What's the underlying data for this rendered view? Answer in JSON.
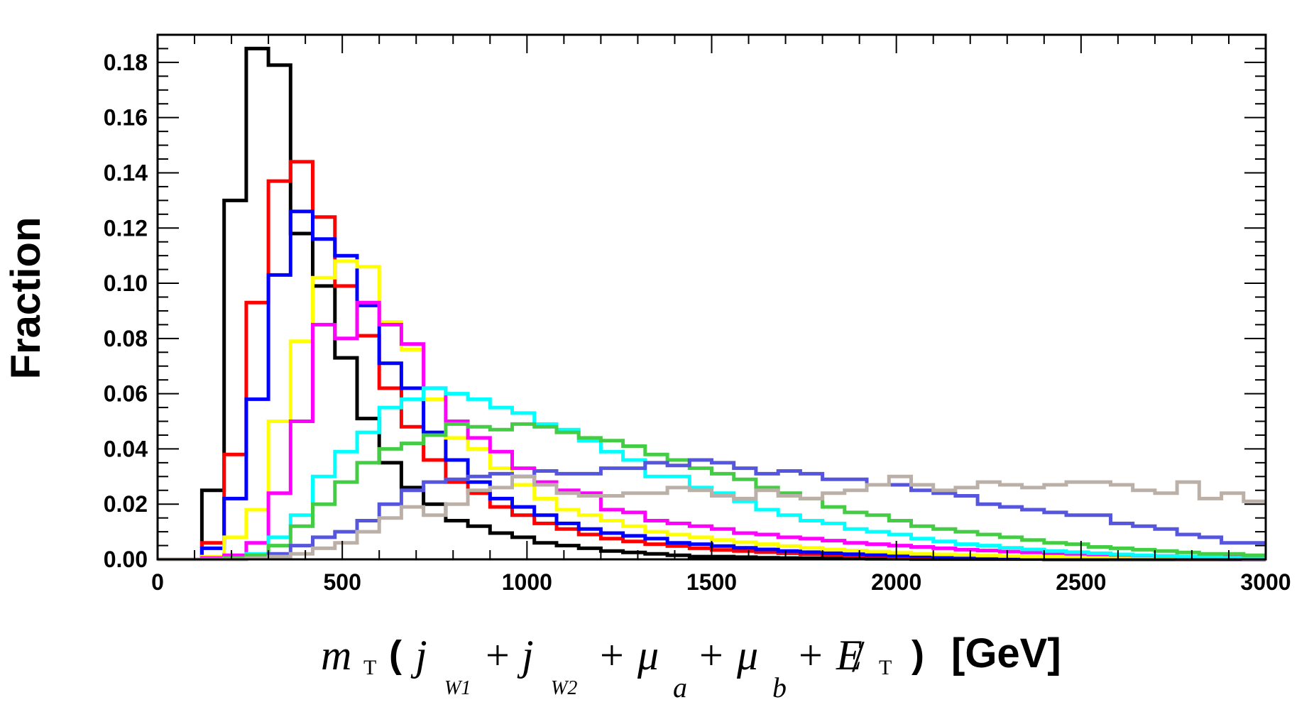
{
  "chart_data": {
    "type": "histogram",
    "ylabel": "Fraction",
    "xlabel": {
      "m": "m",
      "T": "T",
      "lparen": "(",
      "j": "j",
      "w1": "W1",
      "w2": "W2",
      "plus": "+",
      "mu": "μ",
      "a": "a",
      "b": "b",
      "E": "E",
      "slash": "/",
      "rparen": ")",
      "unit": "[GeV]"
    },
    "xlim": [
      0,
      3000
    ],
    "ylim": [
      0,
      0.19
    ],
    "x_ticks": [
      "0",
      "500",
      "1000",
      "1500",
      "2000",
      "2500",
      "3000"
    ],
    "x_tick_values": [
      0,
      500,
      1000,
      1500,
      2000,
      2500,
      3000
    ],
    "y_ticks": [
      "0.00",
      "0.02",
      "0.04",
      "0.06",
      "0.08",
      "0.10",
      "0.12",
      "0.14",
      "0.16",
      "0.18"
    ],
    "y_tick_values": [
      0,
      0.02,
      0.04,
      0.06,
      0.08,
      0.1,
      0.12,
      0.14,
      0.16,
      0.18
    ],
    "bin_width": 60,
    "series": [
      {
        "name": "black",
        "color": "#000000",
        "values": [
          0,
          0,
          0.025,
          0.13,
          0.185,
          0.179,
          0.118,
          0.099,
          0.073,
          0.051,
          0.035,
          0.026,
          0.02,
          0.014,
          0.012,
          0.0095,
          0.008,
          0.006,
          0.005,
          0.004,
          0.003,
          0.0025,
          0.002,
          0.0015,
          0.001,
          0.001,
          0.0008,
          0.0006,
          0.0005,
          0.0004,
          0.0003,
          0.0003,
          0.0002,
          0.0002,
          0.0001,
          0.0001,
          0.0001,
          0.0001,
          0.0001,
          0.0001,
          0,
          0,
          0,
          0,
          0,
          0,
          0,
          0,
          0,
          0
        ]
      },
      {
        "name": "red",
        "color": "#ff0000",
        "values": [
          0,
          0,
          0.006,
          0.038,
          0.093,
          0.137,
          0.144,
          0.124,
          0.099,
          0.081,
          0.062,
          0.048,
          0.036,
          0.028,
          0.024,
          0.019,
          0.016,
          0.013,
          0.011,
          0.009,
          0.0075,
          0.0065,
          0.0055,
          0.0048,
          0.004,
          0.0034,
          0.003,
          0.0026,
          0.0022,
          0.0019,
          0.0016,
          0.0014,
          0.0012,
          0.001,
          0.0009,
          0.0008,
          0.0007,
          0.0006,
          0.0005,
          0.0004,
          0.0004,
          0.0003,
          0.0003,
          0.0002,
          0.0002,
          0.0002,
          0.0001,
          0.0001,
          0.0001,
          0.0001
        ]
      },
      {
        "name": "blue",
        "color": "#0000ff",
        "values": [
          0,
          0,
          0.004,
          0.022,
          0.058,
          0.103,
          0.126,
          0.116,
          0.11,
          0.092,
          0.071,
          0.062,
          0.046,
          0.036,
          0.028,
          0.022,
          0.019,
          0.016,
          0.013,
          0.011,
          0.0095,
          0.0085,
          0.0075,
          0.006,
          0.0055,
          0.0048,
          0.0042,
          0.0036,
          0.003,
          0.0026,
          0.0022,
          0.0019,
          0.0016,
          0.0014,
          0.0012,
          0.001,
          0.0009,
          0.0008,
          0.0007,
          0.0006,
          0.0005,
          0.0004,
          0.0004,
          0.0003,
          0.0003,
          0.0002,
          0.0002,
          0.0002,
          0.0001,
          0.0001
        ]
      },
      {
        "name": "yellow",
        "color": "#ffff00",
        "values": [
          0,
          0,
          0.001,
          0.008,
          0.018,
          0.05,
          0.079,
          0.102,
          0.108,
          0.106,
          0.086,
          0.076,
          0.058,
          0.044,
          0.04,
          0.033,
          0.027,
          0.022,
          0.018,
          0.016,
          0.014,
          0.012,
          0.01,
          0.009,
          0.008,
          0.007,
          0.0062,
          0.0055,
          0.0048,
          0.0042,
          0.0036,
          0.0032,
          0.0028,
          0.0024,
          0.002,
          0.0018,
          0.0016,
          0.0014,
          0.0012,
          0.001,
          0.0009,
          0.0008,
          0.0007,
          0.0006,
          0.0005,
          0.0004,
          0.0004,
          0.0003,
          0.0003,
          0.0002
        ]
      },
      {
        "name": "magenta",
        "color": "#ff00ff",
        "values": [
          0,
          0,
          0.0005,
          0.0015,
          0.006,
          0.024,
          0.05,
          0.085,
          0.08,
          0.093,
          0.085,
          0.078,
          0.062,
          0.05,
          0.044,
          0.039,
          0.033,
          0.028,
          0.025,
          0.024,
          0.018,
          0.017,
          0.014,
          0.013,
          0.012,
          0.011,
          0.0095,
          0.009,
          0.008,
          0.0075,
          0.0068,
          0.006,
          0.0055,
          0.005,
          0.0045,
          0.004,
          0.0035,
          0.0032,
          0.0028,
          0.0025,
          0.0022,
          0.002,
          0.0018,
          0.0016,
          0.0014,
          0.0012,
          0.001,
          0.001,
          0.0008,
          0.0008
        ]
      },
      {
        "name": "cyan",
        "color": "#00ffff",
        "values": [
          0,
          0,
          0,
          0.0005,
          0.002,
          0.008,
          0.016,
          0.03,
          0.039,
          0.046,
          0.055,
          0.058,
          0.062,
          0.06,
          0.058,
          0.055,
          0.053,
          0.049,
          0.047,
          0.043,
          0.039,
          0.036,
          0.03,
          0.03,
          0.026,
          0.024,
          0.021,
          0.018,
          0.016,
          0.014,
          0.013,
          0.011,
          0.01,
          0.009,
          0.0075,
          0.0065,
          0.0055,
          0.005,
          0.0042,
          0.0036,
          0.003,
          0.0026,
          0.0022,
          0.0018,
          0.0015,
          0.0012,
          0.001,
          0.0008,
          0.0006,
          0.0005
        ]
      },
      {
        "name": "green",
        "color": "#44cc44",
        "values": [
          0,
          0,
          0,
          0.0005,
          0.0015,
          0.005,
          0.012,
          0.02,
          0.028,
          0.035,
          0.04,
          0.042,
          0.045,
          0.049,
          0.048,
          0.047,
          0.049,
          0.048,
          0.046,
          0.044,
          0.043,
          0.041,
          0.038,
          0.036,
          0.033,
          0.031,
          0.029,
          0.026,
          0.024,
          0.022,
          0.019,
          0.017,
          0.016,
          0.014,
          0.012,
          0.011,
          0.01,
          0.009,
          0.008,
          0.007,
          0.006,
          0.0055,
          0.0045,
          0.004,
          0.0035,
          0.003,
          0.0025,
          0.002,
          0.002,
          0.0015
        ]
      },
      {
        "name": "slate blue",
        "color": "#5555dd",
        "values": [
          0,
          0,
          0,
          0,
          0.0005,
          0.002,
          0.005,
          0.008,
          0.01,
          0.014,
          0.02,
          0.025,
          0.028,
          0.029,
          0.03,
          0.031,
          0.03,
          0.032,
          0.031,
          0.031,
          0.033,
          0.033,
          0.035,
          0.034,
          0.036,
          0.035,
          0.033,
          0.031,
          0.032,
          0.031,
          0.029,
          0.029,
          0.027,
          0.027,
          0.025,
          0.024,
          0.023,
          0.02,
          0.019,
          0.018,
          0.017,
          0.016,
          0.016,
          0.013,
          0.012,
          0.011,
          0.009,
          0.008,
          0.006,
          0.006
        ]
      },
      {
        "name": "gray",
        "color": "#bbb0a8",
        "values": [
          0,
          0,
          0,
          0,
          0.0005,
          0.001,
          0.002,
          0.004,
          0.006,
          0.01,
          0.015,
          0.019,
          0.016,
          0.02,
          0.025,
          0.026,
          0.03,
          0.027,
          0.024,
          0.023,
          0.023,
          0.024,
          0.024,
          0.026,
          0.025,
          0.023,
          0.022,
          0.025,
          0.023,
          0.022,
          0.024,
          0.025,
          0.027,
          0.03,
          0.027,
          0.025,
          0.026,
          0.028,
          0.027,
          0.026,
          0.027,
          0.028,
          0.028,
          0.027,
          0.025,
          0.024,
          0.028,
          0.022,
          0.024,
          0.021
        ]
      }
    ]
  }
}
